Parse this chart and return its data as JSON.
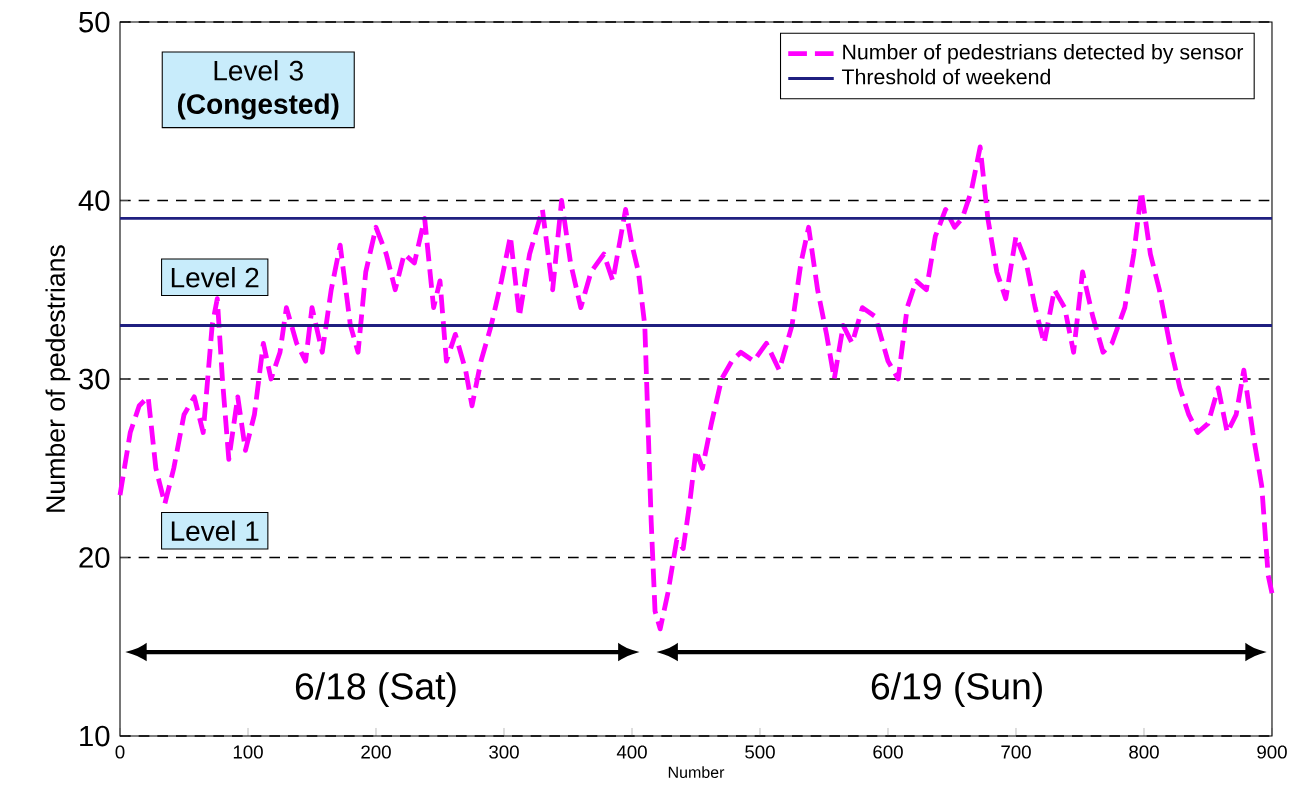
{
  "chart_data": {
    "type": "line",
    "ylabel": "Number of pedestrians",
    "xlabel": "Number",
    "xlim": [
      0,
      900
    ],
    "xticks": [
      0,
      100,
      200,
      300,
      400,
      500,
      600,
      700,
      800,
      900
    ],
    "ylim": [
      10,
      50
    ],
    "yticks": [
      10,
      20,
      30,
      40,
      50
    ],
    "grid": "y",
    "legend": "top right",
    "line_style": "dashed",
    "series": [
      {
        "name": "Number of pedestrians detected by sensor",
        "color": "#ff00ff",
        "x": [
          0,
          8,
          15,
          22,
          28,
          35,
          42,
          50,
          58,
          65,
          72,
          76,
          80,
          85,
          92,
          98,
          105,
          112,
          118,
          125,
          130,
          138,
          145,
          150,
          158,
          165,
          172,
          180,
          186,
          192,
          200,
          208,
          215,
          222,
          230,
          238,
          245,
          250,
          255,
          262,
          270,
          275,
          282,
          290,
          298,
          305,
          312,
          320,
          330,
          338,
          345,
          352,
          360,
          368,
          378,
          385,
          395,
          400,
          405,
          410,
          415,
          418,
          422,
          428,
          435,
          440,
          445,
          450,
          455,
          462,
          470,
          478,
          485,
          495,
          505,
          515,
          525,
          532,
          538,
          545,
          552,
          558,
          565,
          572,
          580,
          590,
          600,
          608,
          615,
          622,
          630,
          637,
          645,
          652,
          658,
          665,
          672,
          678,
          685,
          692,
          700,
          708,
          715,
          722,
          730,
          738,
          745,
          752,
          760,
          768,
          775,
          785,
          792,
          798,
          805,
          812,
          820,
          828,
          835,
          842,
          850,
          858,
          865,
          872,
          878,
          885,
          892,
          897,
          900
        ],
        "values": [
          23.5,
          27,
          28.5,
          29,
          25,
          23,
          25,
          28,
          29,
          27,
          33,
          34.5,
          30,
          25.5,
          29,
          26,
          28,
          32,
          30,
          31.5,
          34,
          32,
          31,
          34,
          31.5,
          35,
          37.5,
          33,
          31.5,
          36,
          38.5,
          37,
          35,
          37,
          36.5,
          39,
          34,
          35.5,
          31,
          32.5,
          30.5,
          28.5,
          31,
          33,
          35.5,
          38,
          33.5,
          37,
          39.5,
          35,
          40,
          36.5,
          34,
          36,
          37,
          35.5,
          39.5,
          37.5,
          36,
          33,
          22,
          17,
          16,
          18,
          21,
          20.5,
          23,
          26,
          25,
          27.5,
          30,
          31,
          31.5,
          31,
          32,
          30.5,
          33,
          36.5,
          38.5,
          35,
          32.5,
          30,
          33,
          32,
          34,
          33.5,
          31,
          30,
          34,
          35.5,
          35,
          38,
          39.5,
          38.5,
          39,
          40.5,
          43,
          39,
          36,
          34.5,
          38,
          36.5,
          34,
          32,
          35,
          34,
          31.5,
          36,
          33.5,
          31.5,
          32,
          34,
          37,
          40.5,
          37,
          35,
          32,
          29.5,
          28,
          27,
          27.5,
          29.5,
          27,
          28,
          30.5,
          27,
          24,
          19,
          18
        ]
      }
    ],
    "ref_lines": [
      {
        "axis": "y",
        "value": 39,
        "label": "Threshold of weekend",
        "color": "#1f1f80"
      },
      {
        "axis": "y",
        "value": 33,
        "color": "#1f1f80"
      }
    ],
    "annotations": [
      "Level 3 **(Congested)**",
      "Level 2",
      "Level 1",
      "6/18 (Sat)",
      "6/19 (Sun)"
    ]
  }
}
